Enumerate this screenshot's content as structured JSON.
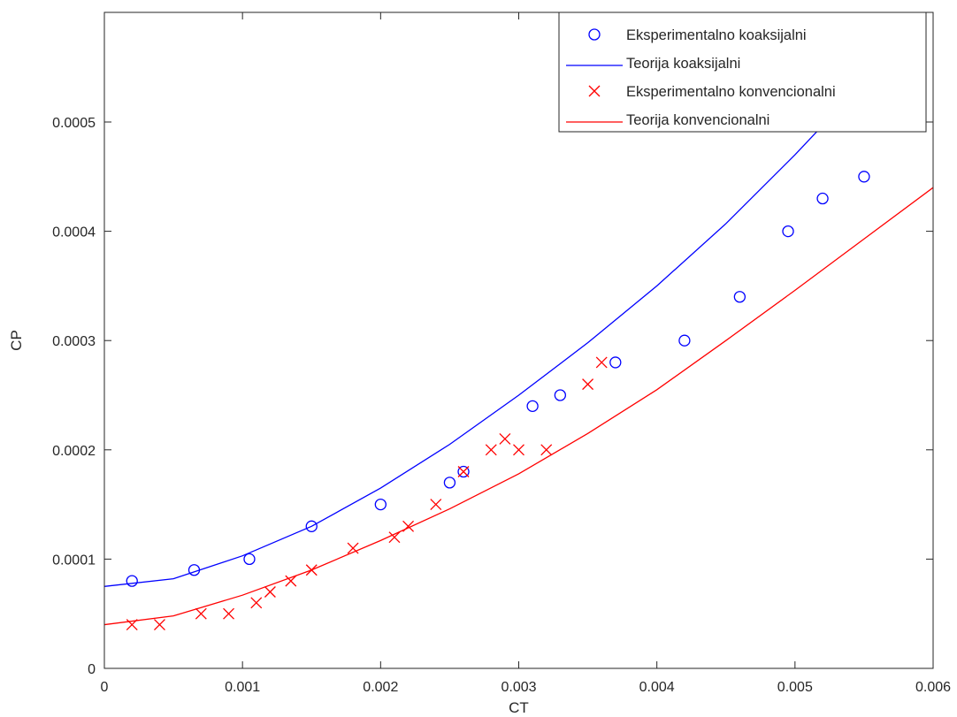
{
  "chart_data": {
    "type": "scatter",
    "title": "",
    "xlabel": "CT",
    "ylabel": "CP",
    "xlim": [
      0,
      0.006
    ],
    "ylim": [
      0,
      0.0006
    ],
    "xticks": [
      0,
      0.001,
      0.002,
      0.003,
      0.004,
      0.005,
      0.006
    ],
    "xtick_labels": [
      "0",
      "0.001",
      "0.002",
      "0.003",
      "0.004",
      "0.005",
      "0.006"
    ],
    "yticks": [
      0,
      0.0001,
      0.0002,
      0.0003,
      0.0004,
      0.0005
    ],
    "ytick_labels": [
      "0",
      "0.0001",
      "0.0002",
      "0.0003",
      "0.0004",
      "0.0005"
    ],
    "grid": false,
    "legend_position": "top-right",
    "series": [
      {
        "name": "Eksperimentalno koaksijalni",
        "kind": "markers",
        "marker": "circle",
        "color": "#0000ff",
        "x": [
          0.0002,
          0.00065,
          0.00105,
          0.0015,
          0.002,
          0.0025,
          0.0026,
          0.0031,
          0.0033,
          0.0037,
          0.0042,
          0.0046,
          0.00495,
          0.0052,
          0.0055
        ],
        "y": [
          8e-05,
          9e-05,
          0.0001,
          0.00013,
          0.00015,
          0.00017,
          0.00018,
          0.00024,
          0.00025,
          0.00028,
          0.0003,
          0.00034,
          0.0004,
          0.00043,
          0.00045
        ]
      },
      {
        "name": "Teorija koaksijalni",
        "kind": "line",
        "color": "#0000ff",
        "x": [
          0,
          0.0005,
          0.001,
          0.0015,
          0.002,
          0.0025,
          0.003,
          0.0035,
          0.004,
          0.0045,
          0.005,
          0.0055,
          0.006
        ],
        "y": [
          7.5e-05,
          8.2e-05,
          0.000103,
          0.00013,
          0.000165,
          0.000205,
          0.00025,
          0.000298,
          0.00035,
          0.000407,
          0.00047,
          0.000537,
          0.00061
        ]
      },
      {
        "name": "Eksperimentalno konvencionalni",
        "kind": "markers",
        "marker": "x",
        "color": "#ff0000",
        "x": [
          0.0002,
          0.0004,
          0.0007,
          0.0009,
          0.0011,
          0.0012,
          0.00135,
          0.0015,
          0.0018,
          0.0021,
          0.0022,
          0.0024,
          0.0026,
          0.0028,
          0.0029,
          0.003,
          0.0032,
          0.0035,
          0.0036
        ],
        "y": [
          4e-05,
          4e-05,
          5e-05,
          5e-05,
          6e-05,
          7e-05,
          8e-05,
          9e-05,
          0.00011,
          0.00012,
          0.00013,
          0.00015,
          0.00018,
          0.0002,
          0.00021,
          0.0002,
          0.0002,
          0.00026,
          0.00028
        ]
      },
      {
        "name": "Teorija konvencionalni",
        "kind": "line",
        "color": "#ff0000",
        "x": [
          0,
          0.0005,
          0.001,
          0.0015,
          0.002,
          0.0025,
          0.003,
          0.0035,
          0.004,
          0.0045,
          0.005,
          0.0055,
          0.006
        ],
        "y": [
          4e-05,
          4.8e-05,
          6.7e-05,
          9e-05,
          0.000117,
          0.000146,
          0.000178,
          0.000215,
          0.000255,
          0.0003,
          0.000346,
          0.000393,
          0.00044
        ]
      }
    ]
  }
}
